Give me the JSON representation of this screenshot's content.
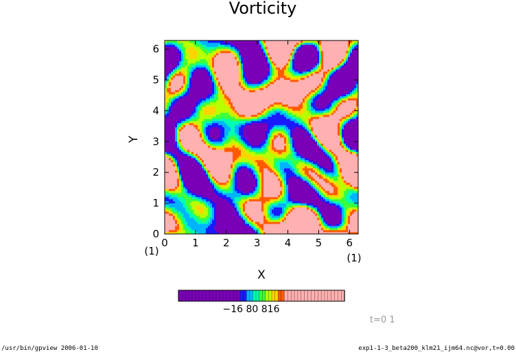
{
  "chart_data": {
    "type": "heatmap",
    "title": "Vorticity",
    "xlabel": "X",
    "ylabel": "Y",
    "xlim": [
      0,
      6.283
    ],
    "ylim": [
      0,
      6.283
    ],
    "x_ticks": [
      "0",
      "1",
      "2",
      "3",
      "4",
      "5",
      "6"
    ],
    "y_ticks": [
      "0",
      "1",
      "2",
      "3",
      "4",
      "5",
      "6"
    ],
    "x_unit": "(1)",
    "y_unit": "(1)",
    "colorbar_labels": [
      "-16",
      "-8",
      "0",
      "8",
      "16"
    ],
    "colorbar_label_text": "−16 80 816",
    "colormap": [
      "#7a00b8",
      "#1a1aff",
      "#00b4ff",
      "#00ffb0",
      "#3cff3c",
      "#b8ff00",
      "#ffd400",
      "#ff5a00",
      "#ffb0b0"
    ]
  },
  "time_label": "t=0 1",
  "footer": {
    "left": "/usr/bin/gpview  2006-01-10",
    "right": "exp1-1-3_beta200_klm21_ijm64.nc@vor,t=0.00"
  }
}
